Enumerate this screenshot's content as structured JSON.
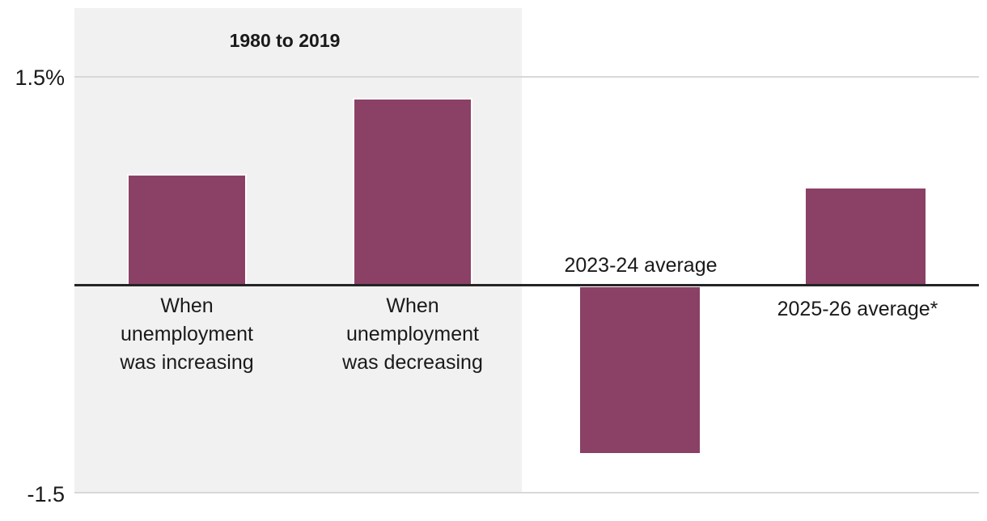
{
  "chart_data": {
    "type": "bar",
    "categories": [
      "When unemployment was increasing",
      "When unemployment was decreasing",
      "2023-24 average",
      "2025-26 average*"
    ],
    "values": [
      0.8,
      1.35,
      -1.2,
      0.7
    ],
    "group_label": "1980 to 2019",
    "group_members": [
      0,
      1
    ],
    "title": "",
    "xlabel": "",
    "ylabel": "",
    "ylim": [
      -1.5,
      1.5
    ],
    "yticks": [
      {
        "value": 1.5,
        "label": "1.5%"
      },
      {
        "value": -1.5,
        "label": "-1.5"
      }
    ],
    "legend": "none",
    "grid": "horizontal gridlines at 1.5 and -1.5 plus dark zero baseline",
    "shaded_region": "gray band behind first two bars labeled 1980 to 2019"
  },
  "axis": {
    "top_tick_label": "1.5%",
    "bottom_tick_label": "-1.5"
  },
  "annotations": {
    "period_label": "1980 to 2019",
    "bar1_label": "When\nunemployment\nwas increasing",
    "bar2_label": "When\nunemployment\nwas decreasing",
    "bar3_label": "2023-24 average",
    "bar4_label": "2025-26 average*"
  },
  "colors": {
    "bar": "#8B4166",
    "shaded_region": "#F2F1F2",
    "gridline": "#D8D8D8",
    "zero_line": "#242424",
    "text": "#1A1A1A",
    "background": "#FFFFFF"
  }
}
